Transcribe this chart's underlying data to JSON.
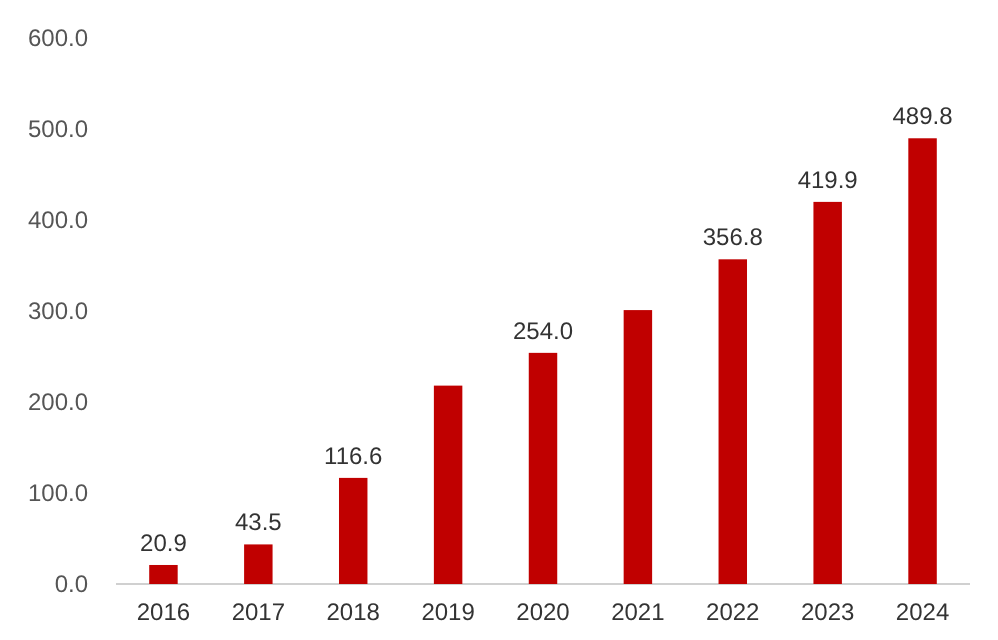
{
  "chart_data": {
    "type": "bar",
    "categories": [
      "2016",
      "2017",
      "2018",
      "2019",
      "2020",
      "2021",
      "2022",
      "2023",
      "2024"
    ],
    "values": [
      20.9,
      43.5,
      116.6,
      218,
      254.0,
      301,
      356.8,
      419.9,
      489.8
    ],
    "value_labels": [
      "20.9",
      "43.5",
      "116.6",
      null,
      "254.0",
      null,
      "356.8",
      "419.9",
      "489.8"
    ],
    "color": "#c00000",
    "ylim": [
      0,
      600
    ],
    "yticks": [
      {
        "value": 0,
        "label": "0.0"
      },
      {
        "value": 100,
        "label": "100.0"
      },
      {
        "value": 200,
        "label": "200.0"
      },
      {
        "value": 300,
        "label": "300.0"
      },
      {
        "value": 400,
        "label": "400.0"
      },
      {
        "value": 500,
        "label": "500.0"
      },
      {
        "value": 600,
        "label": "600.0"
      }
    ],
    "grid": false
  }
}
